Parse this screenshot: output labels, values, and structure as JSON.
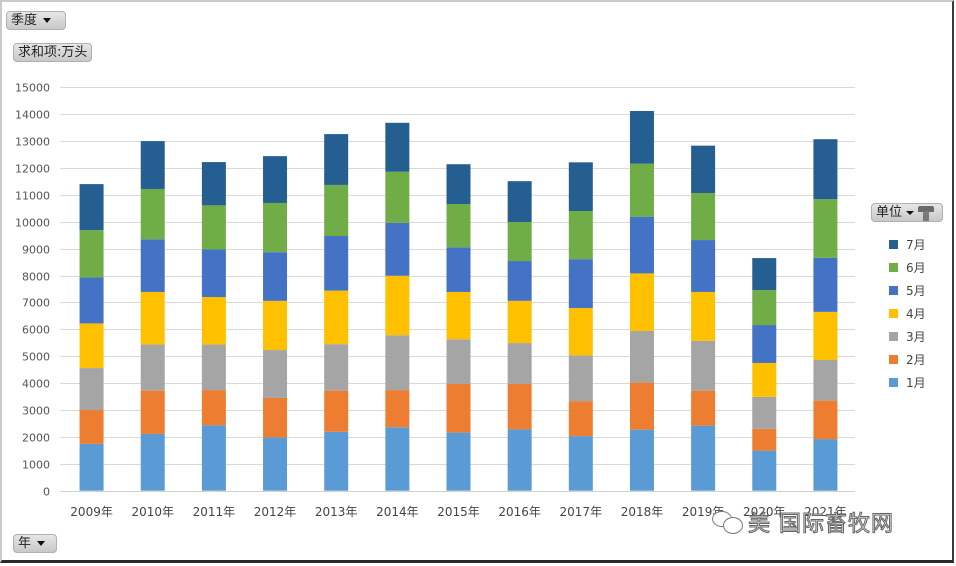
{
  "pivot": {
    "filter_field": "季度",
    "value_field": "求和项:万头",
    "axis_field": "年",
    "legend_field": "单位"
  },
  "watermark": {
    "text": "美 国际畜牧网"
  },
  "chart_data": {
    "type": "bar",
    "stacked": true,
    "title": "",
    "xlabel": "",
    "ylabel": "",
    "ylim": [
      0,
      15000
    ],
    "yticks": [
      0,
      1000,
      2000,
      3000,
      4000,
      5000,
      6000,
      7000,
      8000,
      9000,
      10000,
      11000,
      12000,
      13000,
      14000,
      15000
    ],
    "grid": true,
    "legend_position": "right",
    "categories": [
      "2009年",
      "2010年",
      "2011年",
      "2012年",
      "2013年",
      "2014年",
      "2015年",
      "2016年",
      "2017年",
      "2018年",
      "2019年",
      "2020年",
      "2021年"
    ],
    "series": [
      {
        "name": "1月",
        "color": "#5B9BD5",
        "values": [
          1740,
          2110,
          2430,
          1980,
          2190,
          2360,
          2160,
          2280,
          2030,
          2270,
          2420,
          1490,
          1920
        ]
      },
      {
        "name": "2月",
        "color": "#ED7D31",
        "values": [
          1260,
          1610,
          1310,
          1470,
          1530,
          1380,
          1810,
          1690,
          1300,
          1750,
          1300,
          810,
          1430
        ]
      },
      {
        "name": "3月",
        "color": "#A5A5A5",
        "values": [
          1560,
          1720,
          1700,
          1780,
          1730,
          2040,
          1660,
          1520,
          1700,
          1920,
          1850,
          1190,
          1510
        ]
      },
      {
        "name": "4月",
        "color": "#FFC000",
        "values": [
          1660,
          1950,
          1760,
          1830,
          1990,
          2210,
          1760,
          1570,
          1760,
          2140,
          1820,
          1260,
          1790
        ]
      },
      {
        "name": "5月",
        "color": "#4472C4",
        "values": [
          1710,
          1960,
          1770,
          1810,
          2030,
          1970,
          1660,
          1480,
          1820,
          2110,
          1930,
          1410,
          2010
        ]
      },
      {
        "name": "6月",
        "color": "#70AD47",
        "values": [
          1760,
          1870,
          1640,
          1830,
          1900,
          1900,
          1610,
          1450,
          1790,
          1970,
          1750,
          1300,
          2180
        ]
      },
      {
        "name": "7月",
        "color": "#255E91",
        "values": [
          1710,
          1780,
          1610,
          1740,
          1890,
          1820,
          1480,
          1520,
          1810,
          1960,
          1760,
          1190,
          2230
        ]
      }
    ],
    "legend_order": [
      "7月",
      "6月",
      "5月",
      "4月",
      "3月",
      "2月",
      "1月"
    ]
  }
}
